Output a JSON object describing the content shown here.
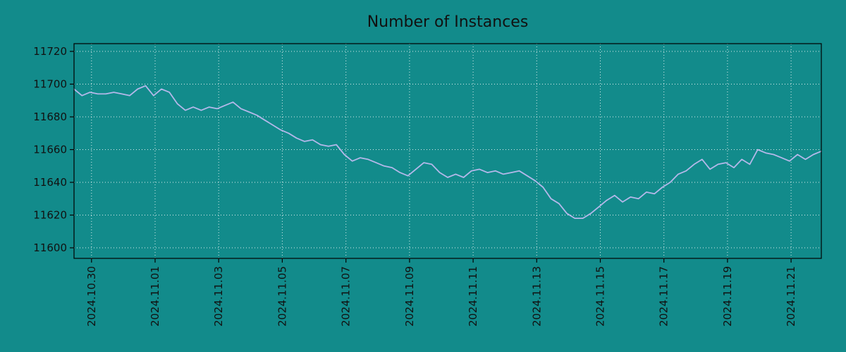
{
  "figure": {
    "background_color": "#128b8b",
    "axis_border_color": "#000000",
    "text_color": "#111111"
  },
  "chart_data": {
    "type": "line",
    "title": "Number of Instances",
    "xlabel": "",
    "ylabel": "",
    "legend": "none",
    "grid": {
      "on": true,
      "color": "#ffffff",
      "style": "dotted"
    },
    "x_axis": {
      "tick_labels": [
        "2024.10.30",
        "2024.11.01",
        "2024.11.03",
        "2024.11.05",
        "2024.11.07",
        "2024.11.09",
        "2024.11.11",
        "2024.11.13",
        "2024.11.15",
        "2024.11.17",
        "2024.11.19",
        "2024.11.21"
      ],
      "tick_positions_days": [
        0,
        2,
        4,
        6,
        8,
        10,
        12,
        14,
        16,
        18,
        20,
        22
      ]
    },
    "y_axis": {
      "ticks": [
        11600,
        11620,
        11640,
        11660,
        11680,
        11700,
        11720
      ],
      "range_shown": [
        11600,
        11720
      ]
    },
    "series": [
      {
        "name": "instances",
        "color": "#b4b8ea",
        "t_start_days": -0.55,
        "t_step_days": 0.25,
        "values": [
          11697,
          11693,
          11695,
          11694,
          11694,
          11695,
          11694,
          11693,
          11697,
          11699,
          11693,
          11697,
          11695,
          11688,
          11684,
          11686,
          11684,
          11686,
          11685,
          11687,
          11689,
          11685,
          11683,
          11681,
          11678,
          11675,
          11672,
          11670,
          11667,
          11665,
          11666,
          11663,
          11662,
          11663,
          11657,
          11653,
          11655,
          11654,
          11652,
          11650,
          11649,
          11646,
          11644,
          11648,
          11652,
          11651,
          11646,
          11643,
          11645,
          11643,
          11647,
          11648,
          11646,
          11647,
          11645,
          11646,
          11647,
          11644,
          11641,
          11637,
          11630,
          11627,
          11621,
          11618,
          11618,
          11621,
          11625,
          11629,
          11632,
          11628,
          11631,
          11630,
          11634,
          11633,
          11637,
          11640,
          11645,
          11647,
          11651,
          11654,
          11648,
          11651,
          11652,
          11649,
          11654,
          11651,
          11660,
          11658,
          11657,
          11655,
          11653,
          11657,
          11654,
          11657,
          11659
        ]
      }
    ]
  }
}
